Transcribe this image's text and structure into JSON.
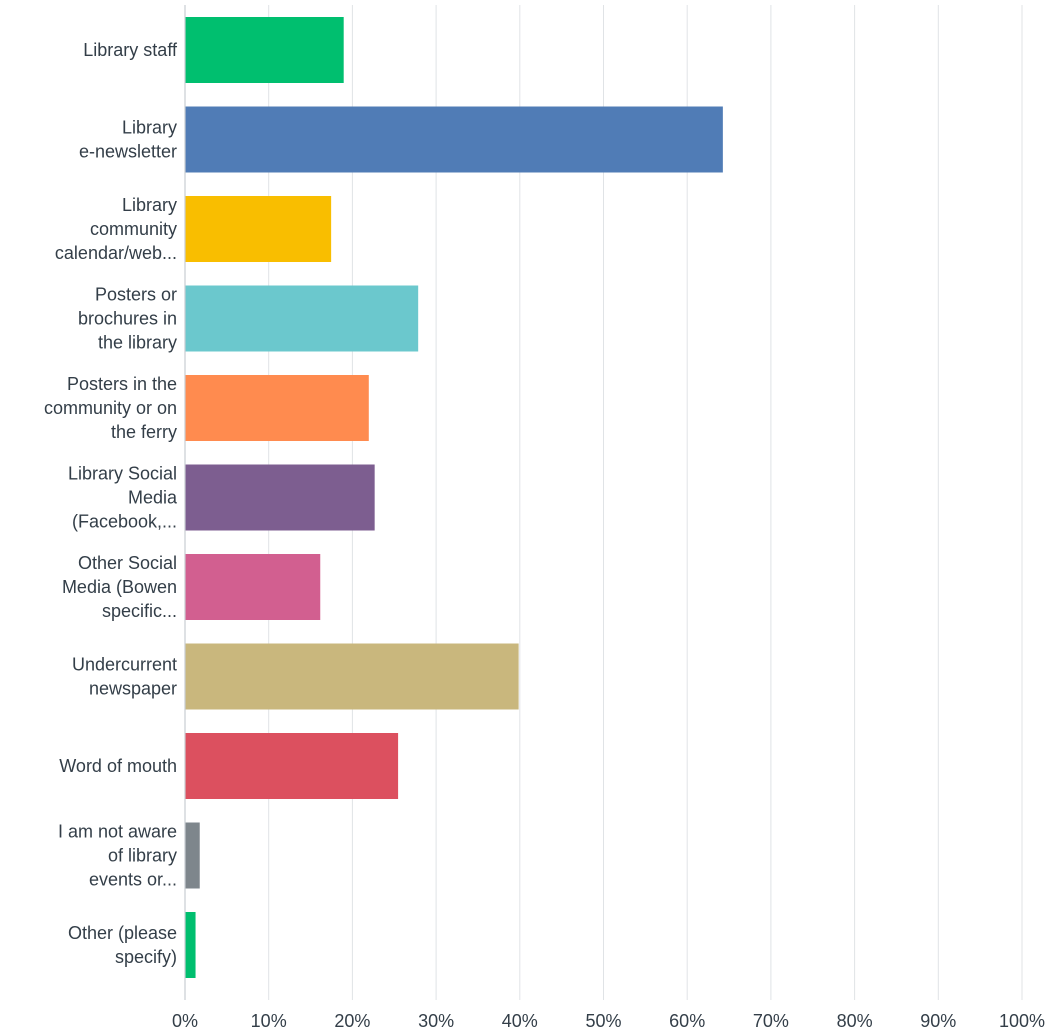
{
  "chart_data": {
    "type": "bar",
    "orientation": "horizontal",
    "categories": [
      [
        "Library staff"
      ],
      [
        "Library",
        "e-newsletter"
      ],
      [
        "Library",
        "community",
        "calendar/web..."
      ],
      [
        "Posters or",
        "brochures in",
        "the library"
      ],
      [
        "Posters in the",
        "community or on",
        "the ferry"
      ],
      [
        "Library Social",
        "Media",
        "(Facebook,..."
      ],
      [
        "Other Social",
        "Media (Bowen",
        "specific..."
      ],
      [
        "Undercurrent",
        "newspaper"
      ],
      [
        "Word of mouth"
      ],
      [
        "I am not aware",
        "of library",
        "events or..."
      ],
      [
        "Other (please",
        "specify)"
      ]
    ],
    "values": [
      18.9,
      64.2,
      17.4,
      27.8,
      21.9,
      22.6,
      16.1,
      39.8,
      25.4,
      1.7,
      1.2
    ],
    "colors": [
      "#00bf6f",
      "#507cb6",
      "#f9be00",
      "#6bc8cd",
      "#ff8b4f",
      "#7d5e90",
      "#d25f90",
      "#c9b77d",
      "#dc505f",
      "#7e868c",
      "#00bf6f"
    ],
    "xlim": [
      0,
      100
    ],
    "x_ticks": [
      "0%",
      "10%",
      "20%",
      "30%",
      "40%",
      "50%",
      "60%",
      "70%",
      "80%",
      "90%",
      "100%"
    ],
    "grid": true,
    "gridline_color": "#e0e3e6",
    "axis_color": "#c8cdd1"
  }
}
